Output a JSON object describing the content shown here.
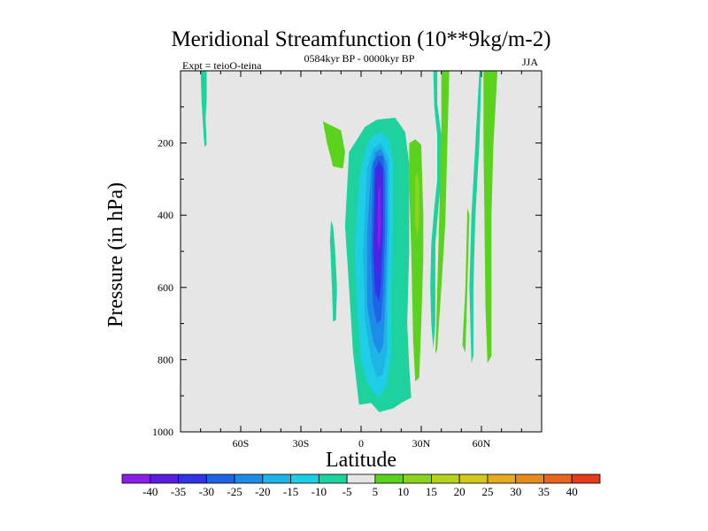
{
  "chart_data": {
    "type": "contour",
    "title": "Meridional Streamfunction (10**9kg/m-2)",
    "subtitle_left": "Expt = teioO-teina",
    "subtitle_center": "0584kyr BP - 0000kyr BP",
    "subtitle_right": "JJA",
    "xlabel": "Latitude",
    "ylabel": "Pressure (in hPa)",
    "xlim": [
      -90,
      90
    ],
    "ylim": [
      0,
      1000
    ],
    "x_ticks": [
      {
        "value": -60,
        "label": "60S"
      },
      {
        "value": -30,
        "label": "30S"
      },
      {
        "value": 0,
        "label": "0"
      },
      {
        "value": 30,
        "label": "30N"
      },
      {
        "value": 60,
        "label": "60N"
      }
    ],
    "y_ticks": [
      {
        "value": 200,
        "label": "200"
      },
      {
        "value": 400,
        "label": "400"
      },
      {
        "value": 600,
        "label": "600"
      },
      {
        "value": 800,
        "label": "800"
      },
      {
        "value": 1000,
        "label": "1000"
      }
    ],
    "colorbar": {
      "labels": [
        "-40",
        "-35",
        "-30",
        "-25",
        "-20",
        "-15",
        "-10",
        "-5",
        "5",
        "10",
        "15",
        "20",
        "25",
        "30",
        "35",
        "40"
      ],
      "colors": [
        "#8a1ee6",
        "#5a1ee0",
        "#3232e6",
        "#1e64e6",
        "#1e8ce6",
        "#1eb4e6",
        "#1ecde6",
        "#1ed2a0",
        "#e6e6e6",
        "#5ad21e",
        "#8cd21e",
        "#b4d21e",
        "#d2c81e",
        "#e6aa1e",
        "#e68c1e",
        "#e6641e",
        "#e63c1e"
      ]
    },
    "regions": [
      {
        "name": "sh-polar-band",
        "level": -5,
        "points": [
          [
            -80,
            0
          ],
          [
            -77,
            0
          ],
          [
            -77,
            85
          ],
          [
            -77.5,
            130
          ],
          [
            -77,
            205
          ],
          [
            -78,
            210
          ],
          [
            -78.5,
            180
          ],
          [
            -79.5,
            85
          ],
          [
            -80,
            0
          ]
        ]
      },
      {
        "name": "sh-subtropic-green",
        "level": 5,
        "points": [
          [
            -19,
            140
          ],
          [
            -10,
            165
          ],
          [
            -8,
            225
          ],
          [
            -9,
            270
          ],
          [
            -14,
            265
          ],
          [
            -17,
            200
          ],
          [
            -19,
            140
          ]
        ]
      },
      {
        "name": "sh-subtropic-band",
        "level": -5,
        "points": [
          [
            -15,
            415
          ],
          [
            -14,
            430
          ],
          [
            -13,
            490
          ],
          [
            -12,
            600
          ],
          [
            -12.5,
            690
          ],
          [
            -14,
            695
          ],
          [
            -14.5,
            600
          ],
          [
            -15.5,
            470
          ],
          [
            -15,
            415
          ]
        ]
      },
      {
        "name": "cell-envelope",
        "level": -5,
        "points": [
          [
            -6,
            225
          ],
          [
            2,
            155
          ],
          [
            8,
            135
          ],
          [
            17,
            130
          ],
          [
            22,
            170
          ],
          [
            24,
            260
          ],
          [
            24,
            400
          ],
          [
            24,
            500
          ],
          [
            23,
            700
          ],
          [
            24,
            820
          ],
          [
            25,
            905
          ],
          [
            20,
            920
          ],
          [
            16,
            935
          ],
          [
            9,
            945
          ],
          [
            5,
            920
          ],
          [
            -1,
            925
          ],
          [
            -4,
            780
          ],
          [
            -6,
            600
          ],
          [
            -8,
            430
          ],
          [
            -6,
            225
          ]
        ]
      },
      {
        "name": "cell-l2",
        "level": -10,
        "points": [
          [
            -1,
            300
          ],
          [
            2,
            225
          ],
          [
            5,
            185
          ],
          [
            10,
            170
          ],
          [
            14,
            190
          ],
          [
            16,
            250
          ],
          [
            16,
            400
          ],
          [
            15,
            600
          ],
          [
            15,
            770
          ],
          [
            13,
            870
          ],
          [
            9,
            905
          ],
          [
            6,
            890
          ],
          [
            3,
            860
          ],
          [
            0,
            800
          ],
          [
            -2,
            650
          ],
          [
            -3,
            500
          ],
          [
            -1,
            300
          ]
        ]
      },
      {
        "name": "cell-l3",
        "level": -15,
        "points": [
          [
            3,
            270
          ],
          [
            6,
            215
          ],
          [
            10,
            200
          ],
          [
            14,
            245
          ],
          [
            14,
            450
          ],
          [
            13,
            620
          ],
          [
            13,
            770
          ],
          [
            11,
            840
          ],
          [
            8,
            850
          ],
          [
            5,
            800
          ],
          [
            2,
            690
          ],
          [
            1,
            500
          ],
          [
            3,
            270
          ]
        ]
      },
      {
        "name": "cell-l4",
        "level": -20,
        "points": [
          [
            5,
            270
          ],
          [
            7,
            225
          ],
          [
            10,
            215
          ],
          [
            13,
            260
          ],
          [
            13,
            450
          ],
          [
            12,
            650
          ],
          [
            11,
            760
          ],
          [
            9,
            785
          ],
          [
            6,
            750
          ],
          [
            3,
            650
          ],
          [
            3,
            450
          ],
          [
            5,
            270
          ]
        ]
      },
      {
        "name": "cell-l5",
        "level": -25,
        "points": [
          [
            6,
            260
          ],
          [
            8,
            235
          ],
          [
            11,
            235
          ],
          [
            12,
            290
          ],
          [
            12,
            450
          ],
          [
            11,
            610
          ],
          [
            10,
            690
          ],
          [
            8,
            700
          ],
          [
            6,
            650
          ],
          [
            5,
            500
          ],
          [
            6,
            260
          ]
        ]
      },
      {
        "name": "cell-l6",
        "level": -30,
        "points": [
          [
            7,
            270
          ],
          [
            9,
            250
          ],
          [
            11,
            270
          ],
          [
            11,
            450
          ],
          [
            10,
            580
          ],
          [
            9,
            640
          ],
          [
            7,
            610
          ],
          [
            6,
            500
          ],
          [
            7,
            270
          ]
        ]
      },
      {
        "name": "cell-l7",
        "level": -35,
        "points": [
          [
            8,
            290
          ],
          [
            9,
            270
          ],
          [
            10,
            300
          ],
          [
            10,
            450
          ],
          [
            9,
            560
          ],
          [
            8,
            560
          ],
          [
            7,
            480
          ],
          [
            8,
            290
          ]
        ]
      },
      {
        "name": "cell-l8",
        "level": -40,
        "points": [
          [
            8.5,
            330
          ],
          [
            9.5,
            320
          ],
          [
            10,
            420
          ],
          [
            9.2,
            500
          ],
          [
            8.5,
            480
          ],
          [
            8.3,
            400
          ],
          [
            8.5,
            330
          ]
        ]
      },
      {
        "name": "nh-green-band",
        "level": 5,
        "points": [
          [
            24,
            200
          ],
          [
            27,
            190
          ],
          [
            30,
            205
          ],
          [
            31,
            400
          ],
          [
            31,
            520
          ],
          [
            30,
            700
          ],
          [
            29,
            850
          ],
          [
            27,
            860
          ],
          [
            26,
            750
          ],
          [
            25,
            500
          ],
          [
            24,
            320
          ],
          [
            24,
            200
          ]
        ]
      },
      {
        "name": "nh-green-inner",
        "level": 10,
        "points": [
          [
            27,
            300
          ],
          [
            28,
            280
          ],
          [
            29,
            310
          ],
          [
            29,
            420
          ],
          [
            28,
            460
          ],
          [
            27,
            420
          ],
          [
            27,
            300
          ]
        ]
      },
      {
        "name": "nh-cyan-band",
        "level": -5,
        "points": [
          [
            36,
            0
          ],
          [
            38,
            0
          ],
          [
            38,
            90
          ],
          [
            40,
            180
          ],
          [
            40,
            300
          ],
          [
            38.5,
            380
          ],
          [
            37,
            480
          ],
          [
            37,
            560
          ],
          [
            37,
            700
          ],
          [
            36,
            770
          ],
          [
            35,
            700
          ],
          [
            34.5,
            600
          ],
          [
            35,
            480
          ],
          [
            36.5,
            380
          ],
          [
            38,
            300
          ],
          [
            38,
            180
          ],
          [
            36.5,
            100
          ],
          [
            36,
            0
          ]
        ]
      },
      {
        "name": "nh-green-tall",
        "level": 5,
        "points": [
          [
            40,
            0
          ],
          [
            44,
            0
          ],
          [
            43,
            200
          ],
          [
            42,
            420
          ],
          [
            40,
            600
          ],
          [
            38,
            770
          ],
          [
            37,
            785
          ],
          [
            37.5,
            700
          ],
          [
            38.5,
            500
          ],
          [
            39.5,
            300
          ],
          [
            40,
            150
          ],
          [
            40,
            0
          ]
        ]
      },
      {
        "name": "nh-green-thin",
        "level": 5,
        "points": [
          [
            53,
            380
          ],
          [
            54,
            400
          ],
          [
            53,
            600
          ],
          [
            52,
            780
          ],
          [
            50.5,
            760
          ],
          [
            52,
            600
          ],
          [
            53,
            380
          ]
        ]
      },
      {
        "name": "nh-green-polar",
        "level": 5,
        "points": [
          [
            61,
            0
          ],
          [
            68,
            0
          ],
          [
            66,
            200
          ],
          [
            65,
            400
          ],
          [
            65,
            600
          ],
          [
            65,
            790
          ],
          [
            63,
            810
          ],
          [
            62,
            650
          ],
          [
            61.5,
            400
          ],
          [
            61,
            200
          ],
          [
            61,
            0
          ]
        ]
      },
      {
        "name": "nh-cyan-polar",
        "level": -5,
        "points": [
          [
            59,
            0
          ],
          [
            60,
            0
          ],
          [
            59,
            200
          ],
          [
            57,
            400
          ],
          [
            56,
            600
          ],
          [
            56,
            790
          ],
          [
            55,
            810
          ],
          [
            54,
            600
          ],
          [
            55,
            400
          ],
          [
            57,
            200
          ],
          [
            59,
            0
          ]
        ]
      }
    ]
  }
}
